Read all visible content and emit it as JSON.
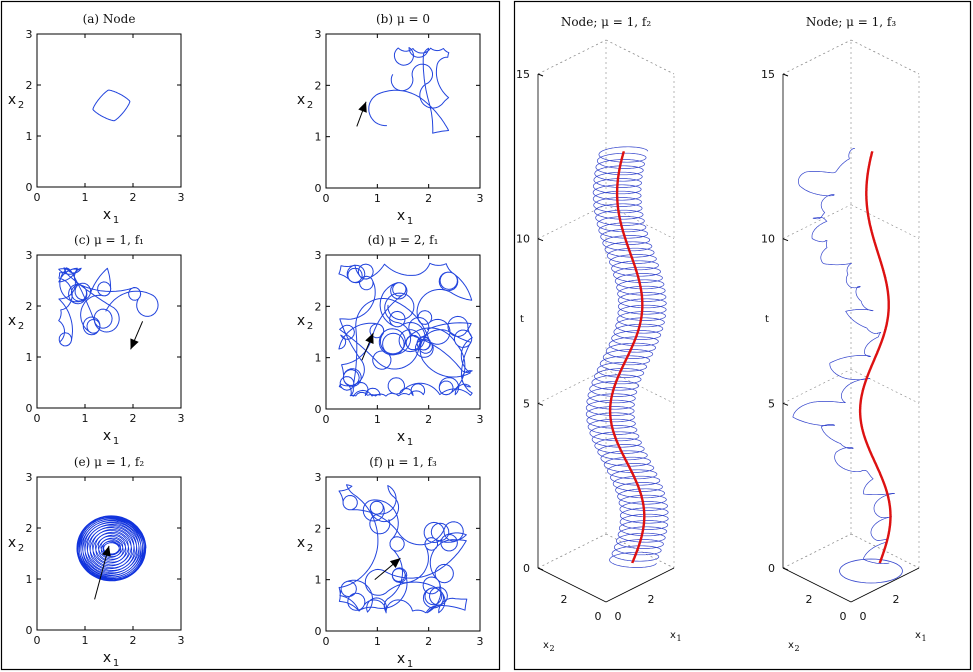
{
  "chart_data": [
    {
      "type": "line",
      "dim": "2d",
      "shape": "diamond",
      "title": "(a) Node",
      "xlabel": "x",
      "xsub": "1",
      "ylabel": "x",
      "ysub": "2",
      "xlim": [
        0,
        3
      ],
      "ylim": [
        0,
        3
      ],
      "xticks": [
        "0",
        "1",
        "2",
        "3"
      ],
      "yticks": [
        "0",
        "1",
        "2",
        "3"
      ],
      "center": [
        1.55,
        1.6
      ],
      "radius": 0.68,
      "series": [
        {
          "color": "#2244dd"
        }
      ],
      "arrow": null
    },
    {
      "type": "line",
      "dim": "2d",
      "shape": "wander",
      "title": "(b) μ = 0",
      "xlabel": "x",
      "xsub": "1",
      "ylabel": "x",
      "ysub": "2",
      "xlim": [
        0,
        3
      ],
      "ylim": [
        0,
        3
      ],
      "xticks": [
        "0",
        "1",
        "2",
        "3"
      ],
      "yticks": [
        "0",
        "1",
        "2",
        "3"
      ],
      "center": [
        1.55,
        1.9
      ],
      "radius": 0.85,
      "seed": 7,
      "steps": 260,
      "series": [
        {
          "color": "#2244dd"
        }
      ],
      "arrow": {
        "from": [
          0.6,
          1.2
        ],
        "to": [
          0.78,
          1.68
        ]
      }
    },
    {
      "type": "line",
      "dim": "2d",
      "shape": "loops",
      "title": "(c) μ = 1, f₁",
      "xlabel": "x",
      "xsub": "1",
      "ylabel": "x",
      "ysub": "2",
      "xlim": [
        0,
        3
      ],
      "ylim": [
        0,
        3
      ],
      "xticks": [
        "0",
        "1",
        "2",
        "3"
      ],
      "yticks": [
        "0",
        "1",
        "2",
        "3"
      ],
      "center": [
        1.6,
        1.6
      ],
      "radius": 1.15,
      "seed": 13,
      "steps": 500,
      "series": [
        {
          "color": "#2244dd"
        }
      ],
      "arrow": {
        "from": [
          2.2,
          1.7
        ],
        "to": [
          1.95,
          1.15
        ]
      }
    },
    {
      "type": "line",
      "dim": "2d",
      "shape": "loops",
      "title": "(d) μ = 2, f₁",
      "xlabel": "x",
      "xsub": "1",
      "ylabel": "x",
      "ysub": "2",
      "xlim": [
        0,
        3
      ],
      "ylim": [
        0,
        3
      ],
      "xticks": [
        "0",
        "1",
        "2",
        "3"
      ],
      "yticks": [
        "0",
        "1",
        "2",
        "3"
      ],
      "center": [
        1.55,
        1.55
      ],
      "radius": 1.3,
      "seed": 29,
      "steps": 1400,
      "series": [
        {
          "color": "#2244dd"
        }
      ],
      "arrow": {
        "from": [
          0.7,
          0.95
        ],
        "to": [
          0.92,
          1.48
        ]
      }
    },
    {
      "type": "line",
      "dim": "2d",
      "shape": "torus",
      "title": "(e) μ = 1, f₂",
      "xlabel": "x",
      "xsub": "1",
      "ylabel": "x",
      "ysub": "2",
      "xlim": [
        0,
        3
      ],
      "ylim": [
        0,
        3
      ],
      "xticks": [
        "0",
        "1",
        "2",
        "3"
      ],
      "yticks": [
        "0",
        "1",
        "2",
        "3"
      ],
      "center": [
        1.55,
        1.6
      ],
      "radius": 0.8,
      "series": [
        {
          "color": "#1133dd"
        }
      ],
      "arrow": {
        "from": [
          1.2,
          0.6
        ],
        "to": [
          1.5,
          1.65
        ]
      }
    },
    {
      "type": "line",
      "dim": "2d",
      "shape": "loops",
      "title": "(f) μ = 1, f₃",
      "xlabel": "x",
      "xsub": "1",
      "ylabel": "x",
      "ysub": "2",
      "xlim": [
        0,
        3
      ],
      "ylim": [
        0,
        3
      ],
      "xticks": [
        "0",
        "1",
        "2",
        "3"
      ],
      "yticks": [
        "0",
        "1",
        "2",
        "3"
      ],
      "center": [
        1.5,
        1.6
      ],
      "radius": 1.25,
      "seed": 41,
      "steps": 900,
      "series": [
        {
          "color": "#2244dd"
        }
      ],
      "arrow": {
        "from": [
          0.95,
          1.0
        ],
        "to": [
          1.45,
          1.42
        ]
      }
    },
    {
      "type": "line",
      "dim": "3d",
      "shape": "helix",
      "title": "Node; μ = 1, f₂",
      "zlabel": "t",
      "xlabel": "x",
      "xsub": "1",
      "ylabel": "x",
      "ysub": "2",
      "zlim": [
        0,
        15
      ],
      "zticks": [
        "0",
        "5",
        "10",
        "15"
      ],
      "xticks": [
        "0",
        "2"
      ],
      "yticks": [
        "0",
        "2"
      ],
      "t_end": 12.5,
      "series": [
        {
          "color": "#3344cc"
        },
        {
          "color": "#dd1111"
        }
      ]
    },
    {
      "type": "line",
      "dim": "3d",
      "shape": "wander3d",
      "title": "Node; μ = 1, f₃",
      "zlabel": "t",
      "xlabel": "x",
      "xsub": "1",
      "ylabel": "x",
      "ysub": "2",
      "zlim": [
        0,
        15
      ],
      "zticks": [
        "0",
        "5",
        "10",
        "15"
      ],
      "xticks": [
        "0",
        "2"
      ],
      "yticks": [
        "0",
        "2"
      ],
      "t_end": 12.5,
      "seed": 5,
      "series": [
        {
          "color": "#3344cc"
        },
        {
          "color": "#dd1111"
        }
      ]
    }
  ]
}
